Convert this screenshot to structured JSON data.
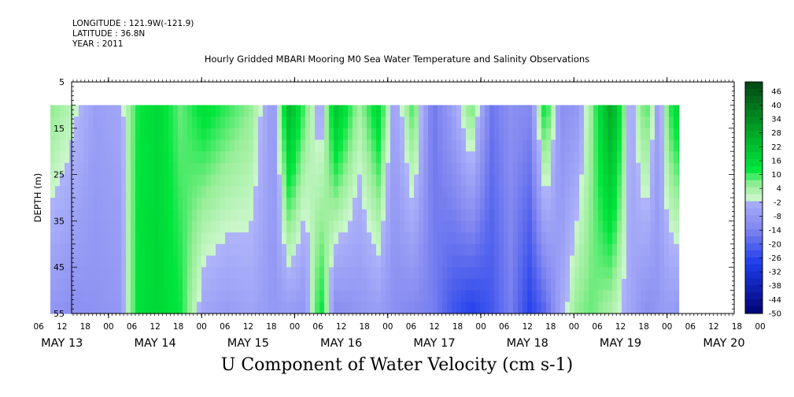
{
  "header": {
    "longitude": "LONGITUDE : 121.9W(-121.9)",
    "latitude": "LATITUDE : 36.8N",
    "year": "YEAR : 2011"
  },
  "chart_data": {
    "type": "heatmap",
    "title": "Hourly Gridded MBARI Mooring M0 Sea Water Temperature and Salinity Observations",
    "ylabel": "DEPTH (m)",
    "xlabel_bottom": "U Component of Water Velocity (cm s-1)",
    "ylim": [
      5,
      55
    ],
    "y_inverted": true,
    "y_ticks": [
      5,
      15,
      25,
      35,
      45,
      55
    ],
    "data_depth_range": [
      10,
      55
    ],
    "x_hour_ticks": [
      "06",
      "12",
      "18",
      "00",
      "06",
      "12",
      "18",
      "00",
      "06",
      "12",
      "18",
      "00",
      "06",
      "12",
      "18",
      "00",
      "06",
      "12",
      "18",
      "00",
      "06",
      "12",
      "18",
      "00",
      "06",
      "12",
      "18",
      "00",
      "06",
      "12",
      "18",
      "00"
    ],
    "x_day_labels": [
      "MAY 13",
      "MAY 14",
      "MAY 15",
      "MAY 16",
      "MAY 17",
      "MAY 18",
      "MAY 19",
      "MAY 20"
    ],
    "colorbar": {
      "levels": [
        "46",
        "40",
        "34",
        "28",
        "22",
        "16",
        "10",
        "4",
        "-2",
        "-8",
        "-14",
        "-20",
        "-26",
        "-32",
        "-38",
        "-44",
        "-50"
      ],
      "range": [
        -50,
        50
      ],
      "step": 3
    },
    "velocity_profiles": [
      {
        "time": "MAY 13 09",
        "top": 6,
        "bottom": -8
      },
      {
        "time": "MAY 13 14",
        "top": 2,
        "bottom": -10
      },
      {
        "time": "MAY 13 20",
        "top": -6,
        "bottom": -9
      },
      {
        "time": "MAY 14 02",
        "top": -4,
        "bottom": -8
      },
      {
        "time": "MAY 14 07",
        "top": 12,
        "bottom": 14
      },
      {
        "time": "MAY 14 12",
        "top": 16,
        "bottom": 16
      },
      {
        "time": "MAY 14 18",
        "top": 8,
        "bottom": 12
      },
      {
        "time": "MAY 15 00",
        "top": 14,
        "bottom": -4
      },
      {
        "time": "MAY 15 06",
        "top": 10,
        "bottom": -6
      },
      {
        "time": "MAY 15 12",
        "top": 6,
        "bottom": -4
      },
      {
        "time": "MAY 15 18",
        "top": -8,
        "bottom": -8
      },
      {
        "time": "MAY 15 22",
        "top": 24,
        "bottom": -6
      },
      {
        "time": "MAY 16 02",
        "top": 8,
        "bottom": -8
      },
      {
        "time": "MAY 16 06",
        "top": -4,
        "bottom": 14
      },
      {
        "time": "MAY 16 10",
        "top": 20,
        "bottom": -10
      },
      {
        "time": "MAY 16 16",
        "top": 4,
        "bottom": -8
      },
      {
        "time": "MAY 16 21",
        "top": 16,
        "bottom": -6
      },
      {
        "time": "MAY 17 01",
        "top": -6,
        "bottom": -10
      },
      {
        "time": "MAY 17 06",
        "top": 10,
        "bottom": -12
      },
      {
        "time": "MAY 17 11",
        "top": -16,
        "bottom": -14
      },
      {
        "time": "MAY 17 16",
        "top": -6,
        "bottom": -22
      },
      {
        "time": "MAY 17 21",
        "top": 8,
        "bottom": -26
      },
      {
        "time": "MAY 18 02",
        "top": -16,
        "bottom": -22
      },
      {
        "time": "MAY 18 07",
        "top": -10,
        "bottom": -14
      },
      {
        "time": "MAY 18 12",
        "top": -12,
        "bottom": -26
      },
      {
        "time": "MAY 18 16",
        "top": 14,
        "bottom": -18
      },
      {
        "time": "MAY 18 20",
        "top": -10,
        "bottom": -4
      },
      {
        "time": "MAY 19 00",
        "top": -8,
        "bottom": 6
      },
      {
        "time": "MAY 19 04",
        "top": 6,
        "bottom": 8
      },
      {
        "time": "MAY 19 09",
        "top": 28,
        "bottom": 4
      },
      {
        "time": "MAY 19 14",
        "top": -4,
        "bottom": -4
      },
      {
        "time": "MAY 19 18",
        "top": 10,
        "bottom": -10
      },
      {
        "time": "MAY 19 21",
        "top": -6,
        "bottom": -8
      },
      {
        "time": "MAY 20 00",
        "top": 10,
        "bottom": -6
      },
      {
        "time": "MAY 20 03",
        "top": 18,
        "bottom": -8
      }
    ]
  }
}
